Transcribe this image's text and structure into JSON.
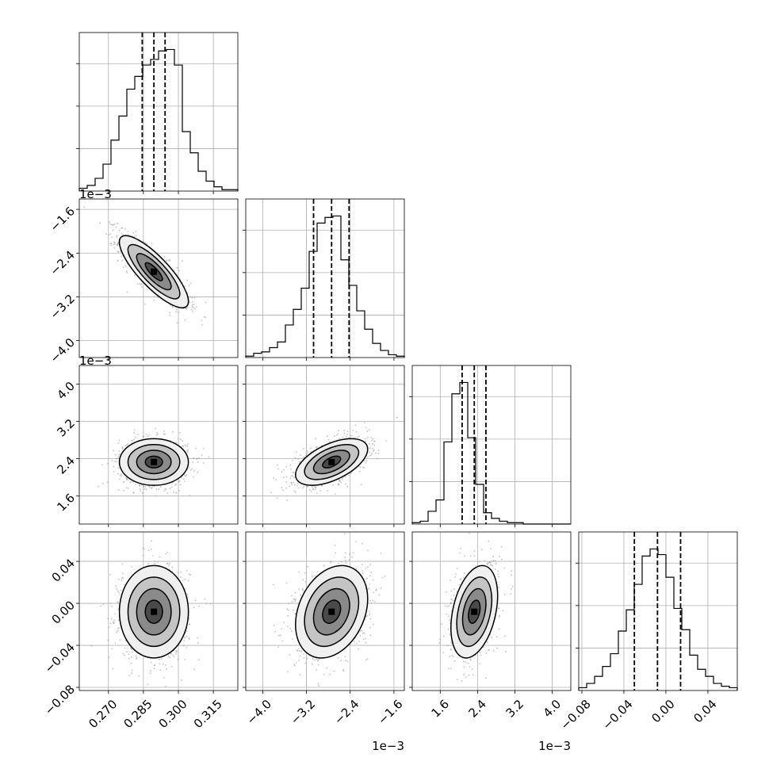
{
  "chart_data": {
    "type": "corner",
    "grid": true,
    "parameters": [
      {
        "range": [
          0.2575,
          0.3255
        ],
        "ticks": [
          0.27,
          0.285,
          0.3,
          0.315
        ],
        "tick_labels": [
          "0.270",
          "0.285",
          "0.300",
          "0.315"
        ],
        "offset_text": "",
        "quantiles": [
          0.2845,
          0.2895,
          0.2943
        ],
        "hist": [
          0.02,
          0.04,
          0.09,
          0.19,
          0.36,
          0.53,
          0.72,
          0.81,
          0.89,
          0.93,
          0.99,
          1.0,
          0.89,
          0.42,
          0.27,
          0.14,
          0.07,
          0.03,
          0.01,
          0.01
        ],
        "hist_y_ticks": [
          0.3,
          0.6,
          0.9
        ]
      },
      {
        "range": [
          -4.31,
          -1.41
        ],
        "ticks": [
          -4.0,
          -3.2,
          -2.4,
          -1.6
        ],
        "tick_labels": [
          "−4.0",
          "−3.2",
          "−2.4",
          "−1.6"
        ],
        "offset_text": "1e−3",
        "quantiles": [
          -3.07,
          -2.74,
          -2.42
        ],
        "hist": [
          0.01,
          0.03,
          0.04,
          0.07,
          0.11,
          0.23,
          0.34,
          0.49,
          0.75,
          0.95,
          0.99,
          1.0,
          0.69,
          0.51,
          0.33,
          0.2,
          0.1,
          0.05,
          0.02,
          0.01
        ],
        "hist_y_ticks": [
          0.3,
          0.6,
          0.9
        ]
      },
      {
        "range": [
          1.0,
          4.4
        ],
        "ticks": [
          1.6,
          2.4,
          3.2,
          4.0
        ],
        "tick_labels": [
          "1.6",
          "2.4",
          "3.2",
          "4.0"
        ],
        "offset_text": "1e−3",
        "quantiles": [
          2.07,
          2.33,
          2.58
        ],
        "hist": [
          0.01,
          0.02,
          0.09,
          0.17,
          0.58,
          0.92,
          1.0,
          0.61,
          0.28,
          0.08,
          0.04,
          0.02,
          0.01,
          0.01,
          0.0,
          0.0,
          0.0,
          0.0,
          0.0,
          0.0
        ],
        "hist_y_ticks": [
          0.3,
          0.6,
          0.9
        ]
      },
      {
        "range": [
          -0.083,
          0.068
        ],
        "ticks": [
          -0.08,
          -0.04,
          0.0,
          0.04
        ],
        "tick_labels": [
          "−0.08",
          "−0.04",
          "0.00",
          "0.04"
        ],
        "offset_text": "",
        "quantiles": [
          -0.03,
          -0.008,
          0.014
        ],
        "hist": [
          0.02,
          0.05,
          0.1,
          0.17,
          0.26,
          0.42,
          0.57,
          0.75,
          0.95,
          1.0,
          0.96,
          0.8,
          0.58,
          0.43,
          0.25,
          0.15,
          0.1,
          0.05,
          0.03,
          0.02
        ],
        "hist_y_ticks": [
          0.3,
          0.6,
          0.9
        ]
      }
    ],
    "pairs": [
      {
        "x": 0,
        "y": 1,
        "rho": -0.82,
        "mean": [
          0.2895,
          -2.74
        ],
        "sd": [
          0.0074,
          0.33
        ]
      },
      {
        "x": 0,
        "y": 2,
        "rho": 0.0,
        "mean": [
          0.2895,
          2.33
        ],
        "sd": [
          0.0074,
          0.25
        ]
      },
      {
        "x": 1,
        "y": 2,
        "rho": 0.55,
        "mean": [
          -2.74,
          2.33
        ],
        "sd": [
          0.33,
          0.25
        ]
      },
      {
        "x": 0,
        "y": 3,
        "rho": 0.0,
        "mean": [
          0.2895,
          -0.008
        ],
        "sd": [
          0.0074,
          0.022
        ]
      },
      {
        "x": 1,
        "y": 3,
        "rho": 0.28,
        "mean": [
          -2.74,
          -0.008
        ],
        "sd": [
          0.33,
          0.022
        ]
      },
      {
        "x": 2,
        "y": 3,
        "rho": 0.35,
        "mean": [
          2.33,
          -0.008
        ],
        "sd": [
          0.25,
          0.022
        ]
      }
    ]
  }
}
